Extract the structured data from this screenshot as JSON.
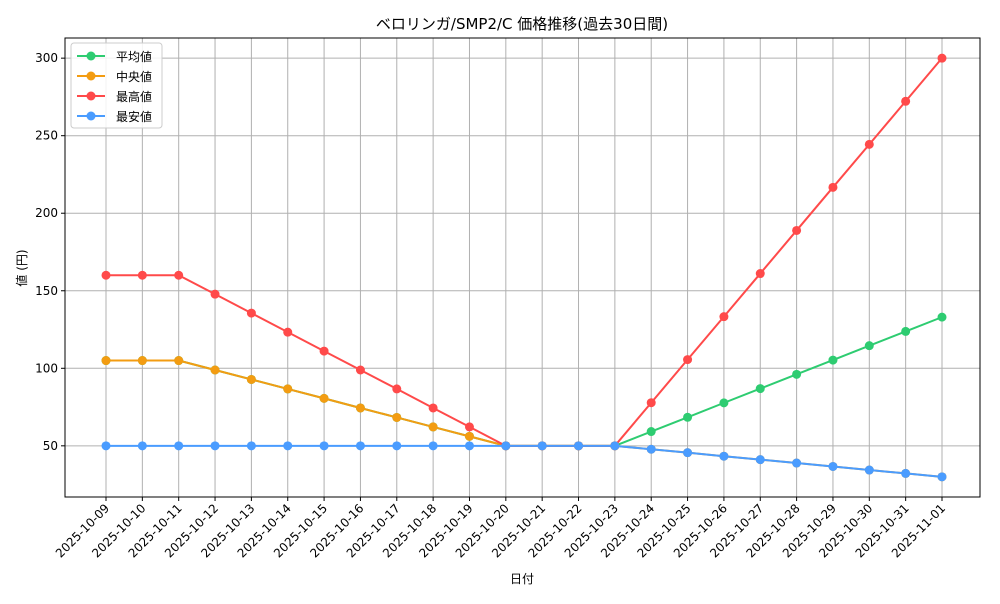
{
  "chart_data": {
    "type": "line",
    "title": "ベロリンガ/SMP2/C 価格推移(過去30日間)",
    "xlabel": "日付",
    "ylabel": "値 (円)",
    "ylim": [
      17,
      313
    ],
    "yticks": [
      50,
      100,
      150,
      200,
      250,
      300
    ],
    "grid": true,
    "legend_position": "top-left",
    "x": [
      "2025-10-09",
      "2025-10-10",
      "2025-10-11",
      "2025-10-12",
      "2025-10-13",
      "2025-10-14",
      "2025-10-15",
      "2025-10-16",
      "2025-10-17",
      "2025-10-18",
      "2025-10-19",
      "2025-10-20",
      "2025-10-21",
      "2025-10-22",
      "2025-10-23",
      "2025-10-24",
      "2025-10-25",
      "2025-10-26",
      "2025-10-27",
      "2025-10-28",
      "2025-10-29",
      "2025-10-30",
      "2025-10-31",
      "2025-11-01"
    ],
    "series": [
      {
        "name": "平均値",
        "color": "#2ecc71",
        "values": [
          105,
          105,
          105,
          98.9,
          92.8,
          86.7,
          80.6,
          74.4,
          68.3,
          62.2,
          56.1,
          50,
          50,
          50,
          50,
          59.2,
          68.4,
          77.7,
          86.9,
          96.1,
          105.3,
          114.6,
          123.8,
          133
        ]
      },
      {
        "name": "中央値",
        "color": "#f39c12",
        "values": [
          105,
          105,
          105,
          98.9,
          92.8,
          86.7,
          80.6,
          74.4,
          68.3,
          62.2,
          56.1,
          50,
          50,
          50,
          50,
          47.8,
          45.6,
          43.3,
          41.1,
          38.9,
          36.7,
          34.4,
          32.2,
          30
        ]
      },
      {
        "name": "最高値",
        "color": "#ff4a4a",
        "values": [
          160,
          160,
          160,
          147.8,
          135.6,
          123.3,
          111.1,
          98.9,
          86.7,
          74.4,
          62.2,
          50,
          50,
          50,
          50,
          77.8,
          105.6,
          133.3,
          161.1,
          188.9,
          216.7,
          244.4,
          272.2,
          300
        ]
      },
      {
        "name": "最安値",
        "color": "#4a9cff",
        "values": [
          50,
          50,
          50,
          50,
          50,
          50,
          50,
          50,
          50,
          50,
          50,
          50,
          50,
          50,
          50,
          47.8,
          45.6,
          43.3,
          41.1,
          38.9,
          36.7,
          34.4,
          32.2,
          30
        ]
      }
    ]
  }
}
